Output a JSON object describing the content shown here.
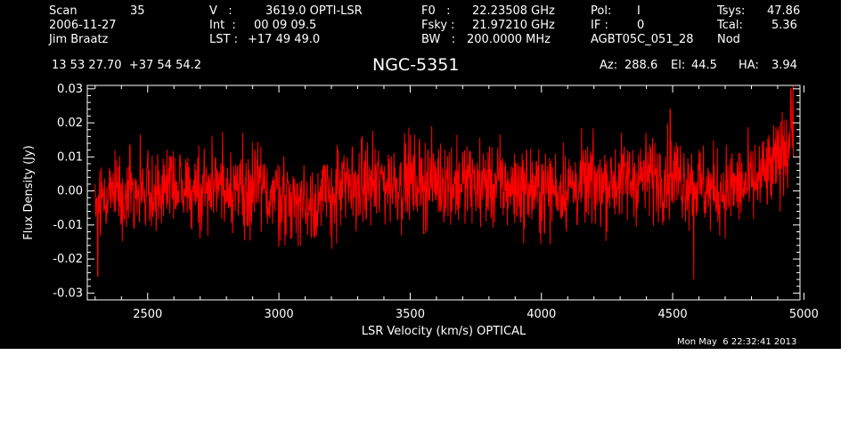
{
  "header": {
    "scan_label": "Scan",
    "scan_value": "35",
    "date": "2006-11-27",
    "observer": "Jim Braatz",
    "v_label": "V   :",
    "v_value": "3619.0 OPTI-LSR",
    "int_label": "Int  :",
    "int_value": "00 09 09.5",
    "lst_label": "LST :",
    "lst_value": "+17 49 49.0",
    "f0_label": "F0   :",
    "f0_value": "22.23508 GHz",
    "fsky_label": "Fsky :",
    "fsky_value": "21.97210 GHz",
    "bw_label": "BW   :",
    "bw_value": "200.0000 MHz",
    "pol_label": "Pol:",
    "pol_value": "I",
    "if_label": "IF :",
    "if_value": "0",
    "project": "AGBT05C_051_28",
    "tsys_label": "Tsys:",
    "tsys_value": "47.86",
    "tcal_label": "Tcal:",
    "tcal_value": "5.36",
    "mode": "Nod",
    "coords": "13 53 27.70  +37 54 54.2",
    "az_label": "Az:",
    "az_value": "288.6",
    "el_label": "El:",
    "el_value": "44.5",
    "ha_label": "HA:",
    "ha_value": "3.94"
  },
  "timestamp": "Mon May  6 22:32:41 2013",
  "colors": {
    "background": "#000000",
    "axes": "#ffffff",
    "series": "#ff0000"
  },
  "chart_data": {
    "type": "line",
    "title": "NGC-5351",
    "xlabel": "LSR Velocity (km/s) OPTICAL",
    "ylabel": "Flux Density (Jy)",
    "xlim": [
      2270,
      4985
    ],
    "ylim": [
      -0.032,
      0.031
    ],
    "x_ticks": [
      2500,
      3000,
      3500,
      4000,
      4500,
      5000
    ],
    "x_tick_labels": [
      "2500",
      "3000",
      "3500",
      "4000",
      "4500",
      "5000"
    ],
    "y_ticks": [
      -0.03,
      -0.02,
      -0.01,
      0.0,
      0.01,
      0.02,
      0.03
    ],
    "y_tick_labels": [
      "-0.03",
      "-0.02",
      "-0.01",
      "0.00",
      "0.01",
      "0.02",
      "0.03"
    ],
    "grid": false,
    "series": [
      {
        "color": "#ff0000",
        "x_start": 2300,
        "x_end": 4960,
        "baseline": [
          [
            2300,
            -0.004
          ],
          [
            2350,
            0.0
          ],
          [
            2600,
            0.0
          ],
          [
            2800,
            0.002
          ],
          [
            3000,
            -0.001
          ],
          [
            3100,
            -0.004
          ],
          [
            3300,
            0.002
          ],
          [
            3500,
            0.003
          ],
          [
            3800,
            0.002
          ],
          [
            4000,
            0.0
          ],
          [
            4200,
            0.002
          ],
          [
            4500,
            0.005
          ],
          [
            4650,
            0.0
          ],
          [
            4800,
            0.002
          ],
          [
            4880,
            0.006
          ],
          [
            4960,
            0.017
          ]
        ],
        "noise_rms": 0.0062,
        "features": [
          {
            "x": 4580,
            "y": -0.026
          },
          {
            "x": 4490,
            "y": 0.024
          },
          {
            "x": 4950,
            "y": 0.03
          },
          {
            "x": 2310,
            "y": -0.025
          }
        ]
      }
    ]
  }
}
